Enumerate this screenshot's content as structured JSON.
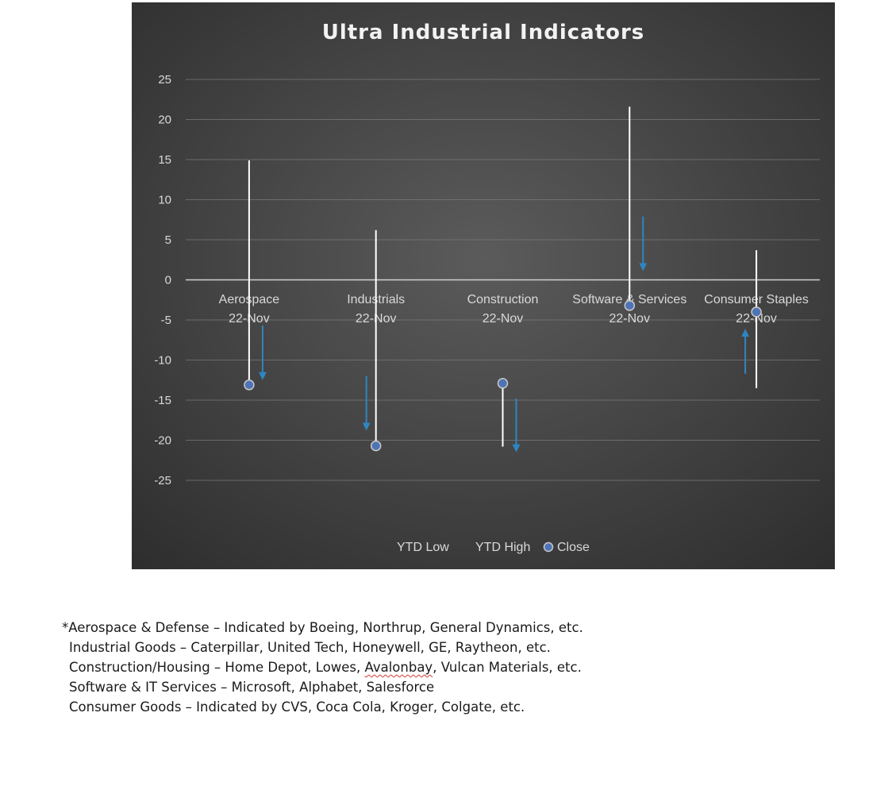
{
  "chart_data": {
    "type": "stock-hlc",
    "title": "Ultra Industrial Indicators",
    "ylim": [
      -25,
      25
    ],
    "y_ticks": [
      25,
      20,
      15,
      10,
      5,
      0,
      -5,
      -10,
      -15,
      -20,
      -25
    ],
    "categories": [
      {
        "name": "Aerospace",
        "date": "22-Nov"
      },
      {
        "name": "Industrials",
        "date": "22-Nov"
      },
      {
        "name": "Construction",
        "date": "22-Nov"
      },
      {
        "name": "Software & Services",
        "date": "22-Nov"
      },
      {
        "name": "Consumer Staples",
        "date": "22-Nov"
      }
    ],
    "series": [
      {
        "name": "YTD Low",
        "values": [
          -13,
          -20.8,
          -20.8,
          -3.3,
          -13.5
        ]
      },
      {
        "name": "YTD High",
        "values": [
          14.9,
          6.2,
          -12.9,
          21.6,
          3.7
        ]
      },
      {
        "name": "Close",
        "values": [
          -13.1,
          -20.7,
          -12.9,
          -3.2,
          -4.0
        ]
      }
    ],
    "arrows": [
      {
        "category": "Aerospace",
        "direction": "down",
        "from": -5.7,
        "to": -12
      },
      {
        "category": "Industrials",
        "direction": "down",
        "from": -12,
        "to": -18.3
      },
      {
        "category": "Construction",
        "direction": "down",
        "from": -14.8,
        "to": -21
      },
      {
        "category": "Software & Services",
        "direction": "down",
        "from": 7.9,
        "to": 1.6
      },
      {
        "category": "Consumer Staples",
        "direction": "up",
        "from": -11.7,
        "to": -6.6
      }
    ],
    "legend": {
      "position": "bottom",
      "entries": [
        "YTD Low",
        "YTD High",
        "Close"
      ]
    },
    "grid": true,
    "colors": {
      "background_center": "#5b5b5b",
      "background_edge": "#2d2d2d",
      "range_line": "#ffffff",
      "close_marker": "#4f74b6",
      "arrow": "#2e86c1",
      "text": "#d9d9d9"
    }
  },
  "notes": {
    "line1": "*Aerospace & Defense – Indicated by Boeing, Northrup, General Dynamics, etc.",
    "line2": "Industrial Goods – Caterpillar, United Tech, Honeywell, GE, Raytheon, etc.",
    "line3_before": "Construction/Housing – Home Depot, Lowes, ",
    "line3_mark": "Avalonbay",
    "line3_after": ", Vulcan Materials, etc.",
    "line4": "Software & IT Services – Microsoft, Alphabet, Salesforce",
    "line5": "Consumer Goods – Indicated by CVS, Coca Cola, Kroger, Colgate, etc."
  }
}
